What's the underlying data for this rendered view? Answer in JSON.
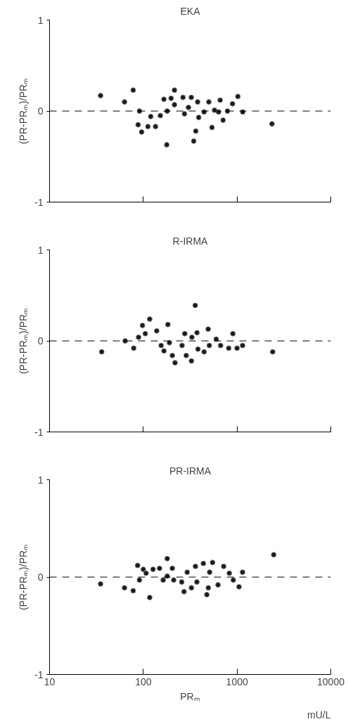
{
  "chart_data": [
    {
      "type": "scatter",
      "title": "EKA",
      "ylabel": "(PR-PRₘ)/PRₘ",
      "log": "x",
      "xlim": [
        10,
        10000
      ],
      "xticks": [
        10,
        100,
        1000,
        10000
      ],
      "ylim": [
        -1,
        1
      ],
      "yticks": [
        -1,
        0,
        1
      ],
      "tick_labels": "y",
      "marker": "circle",
      "ref_lines": [
        {
          "axis": "y",
          "value": 0,
          "line_style": "dashed",
          "color": "#000000"
        }
      ],
      "series": [
        {
          "color": "#1a1a1a",
          "x": [
            35,
            63,
            78,
            91,
            120,
            88,
            96,
            112,
            135,
            152,
            166,
            178,
            180,
            198,
            215,
            215,
            265,
            275,
            303,
            325,
            345,
            363,
            380,
            390,
            445,
            500,
            540,
            575,
            635,
            660,
            710,
            790,
            895,
            1020,
            1150,
            2360
          ],
          "values": [
            0.17,
            0.1,
            0.23,
            0.0,
            -0.06,
            -0.15,
            -0.23,
            -0.17,
            -0.17,
            -0.05,
            0.13,
            -0.37,
            0.0,
            0.14,
            0.23,
            0.07,
            0.15,
            -0.03,
            0.04,
            0.15,
            -0.33,
            -0.22,
            0.1,
            -0.07,
            -0.01,
            0.1,
            -0.18,
            0.01,
            -0.01,
            0.12,
            -0.1,
            0.0,
            0.08,
            0.16,
            -0.01,
            -0.14
          ]
        }
      ]
    },
    {
      "type": "scatter",
      "title": "R-IRMA",
      "ylabel": "(PR-PRₘ)/PRₘ",
      "log": "x",
      "xlim": [
        10,
        10000
      ],
      "xticks": [
        10,
        100,
        1000,
        10000
      ],
      "ylim": [
        -1,
        1
      ],
      "yticks": [
        -1,
        0,
        1
      ],
      "tick_labels": "y",
      "marker": "circle",
      "ref_lines": [
        {
          "axis": "y",
          "value": 0,
          "line_style": "dashed",
          "color": "#000000"
        }
      ],
      "series": [
        {
          "color": "#1a1a1a",
          "x": [
            36,
            64,
            79,
            89,
            98,
            105,
            117,
            139,
            155,
            166,
            183,
            190,
            204,
            218,
            259,
            277,
            287,
            326,
            330,
            358,
            374,
            383,
            445,
            492,
            506,
            600,
            668,
            815,
            903,
            1000,
            1145,
            2400
          ],
          "values": [
            -0.12,
            0.0,
            -0.08,
            0.04,
            0.17,
            0.08,
            0.24,
            0.11,
            -0.05,
            -0.11,
            0.18,
            -0.02,
            -0.16,
            -0.24,
            -0.05,
            0.08,
            -0.16,
            -0.22,
            0.04,
            0.39,
            0.09,
            -0.09,
            -0.12,
            0.13,
            -0.05,
            0.02,
            -0.05,
            -0.08,
            0.08,
            -0.08,
            -0.05,
            -0.12
          ]
        }
      ]
    },
    {
      "type": "scatter",
      "title": "PR-IRMA",
      "ylabel": "(PR-PRₘ)/PRₘ",
      "xlabel": "PRₘ",
      "annotations": [
        "mU/L"
      ],
      "log": "x",
      "xlim": [
        10,
        10000
      ],
      "xticks": [
        10,
        100,
        1000,
        10000
      ],
      "ylim": [
        -1,
        1
      ],
      "yticks": [
        -1,
        0,
        1
      ],
      "marker": "circle",
      "ref_lines": [
        {
          "axis": "y",
          "value": 0,
          "line_style": "dashed",
          "color": "#000000"
        }
      ],
      "series": [
        {
          "color": "#1a1a1a",
          "x": [
            35,
            63,
            78,
            87,
            91,
            100,
            107,
            117,
            127,
            149,
            163,
            180,
            180,
            204,
            211,
            257,
            272,
            294,
            326,
            360,
            373,
            437,
            476,
            494,
            510,
            548,
            627,
            720,
            827,
            912,
            1050,
            1145,
            2460
          ],
          "values": [
            -0.07,
            -0.11,
            -0.14,
            0.12,
            -0.03,
            0.08,
            0.04,
            -0.21,
            0.08,
            0.09,
            -0.03,
            0.19,
            0.01,
            0.09,
            -0.03,
            -0.05,
            -0.15,
            0.05,
            -0.11,
            0.11,
            -0.05,
            0.14,
            -0.18,
            -0.11,
            0.05,
            0.15,
            -0.08,
            0.11,
            0.04,
            -0.03,
            -0.1,
            0.05,
            0.23
          ]
        }
      ]
    }
  ]
}
